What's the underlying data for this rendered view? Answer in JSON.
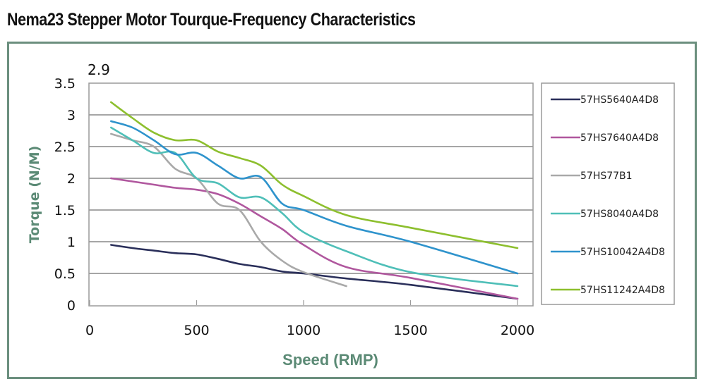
{
  "page_title": "Nema23 Stepper Motor Tourque-Frequency Characteristics",
  "colors": {
    "frame": "#6b8f7e",
    "axis_label": "#5b8a75",
    "grid": "#a6a6a6"
  },
  "chart_data": {
    "type": "line",
    "title": "Nema23 Stepper Motor Tourque-Frequency Characteristics",
    "annotation": "2.9",
    "xlabel": "Speed (RMP)",
    "ylabel": "Torque (N/M)",
    "xlim": [
      0,
      2000
    ],
    "ylim": [
      0,
      3.5
    ],
    "xticks": [
      "0",
      "500",
      "1000",
      "1500",
      "2000"
    ],
    "yticks": [
      "0",
      "0.5",
      "1",
      "1.5",
      "2",
      "2.5",
      "3",
      "3.5"
    ],
    "grid": true,
    "legend_position": "right",
    "series": [
      {
        "name": "57HS5640A4D8",
        "color": "#2a2f5a",
        "x": [
          100,
          200,
          300,
          400,
          500,
          600,
          700,
          800,
          900,
          1000,
          1200,
          1500,
          2000
        ],
        "y": [
          0.95,
          0.9,
          0.86,
          0.82,
          0.8,
          0.73,
          0.65,
          0.6,
          0.53,
          0.5,
          0.42,
          0.32,
          0.1
        ]
      },
      {
        "name": "57HS7640A4D8",
        "color": "#b0579e",
        "x": [
          100,
          200,
          300,
          400,
          500,
          600,
          700,
          800,
          900,
          1000,
          1200,
          1500,
          2000
        ],
        "y": [
          2.0,
          1.95,
          1.9,
          1.85,
          1.82,
          1.75,
          1.6,
          1.4,
          1.2,
          0.95,
          0.6,
          0.43,
          0.1
        ]
      },
      {
        "name": "57HS77B1",
        "color": "#a9a9a9",
        "x": [
          100,
          200,
          300,
          400,
          500,
          600,
          700,
          800,
          900,
          1000,
          1200
        ],
        "y": [
          2.7,
          2.6,
          2.5,
          2.15,
          2.0,
          1.6,
          1.5,
          1.0,
          0.7,
          0.52,
          0.3
        ]
      },
      {
        "name": "57HS8040A4D8",
        "color": "#4fbfb8",
        "x": [
          100,
          200,
          300,
          400,
          500,
          600,
          700,
          800,
          900,
          1000,
          1200,
          1500,
          2000
        ],
        "y": [
          2.8,
          2.6,
          2.4,
          2.4,
          2.0,
          1.92,
          1.7,
          1.7,
          1.45,
          1.15,
          0.85,
          0.52,
          0.3
        ]
      },
      {
        "name": "57HS10042A4D8",
        "color": "#2e93cc",
        "x": [
          100,
          200,
          300,
          400,
          500,
          600,
          700,
          800,
          900,
          1000,
          1200,
          1500,
          2000
        ],
        "y": [
          2.9,
          2.8,
          2.6,
          2.38,
          2.4,
          2.2,
          2.0,
          2.02,
          1.6,
          1.5,
          1.25,
          1.0,
          0.5
        ]
      },
      {
        "name": "57HS11242A4D8",
        "color": "#8dbf2e",
        "x": [
          100,
          200,
          300,
          400,
          500,
          600,
          700,
          800,
          900,
          1000,
          1200,
          1500,
          2000
        ],
        "y": [
          3.2,
          2.95,
          2.72,
          2.6,
          2.6,
          2.42,
          2.32,
          2.2,
          1.9,
          1.72,
          1.42,
          1.22,
          0.9
        ]
      }
    ]
  }
}
